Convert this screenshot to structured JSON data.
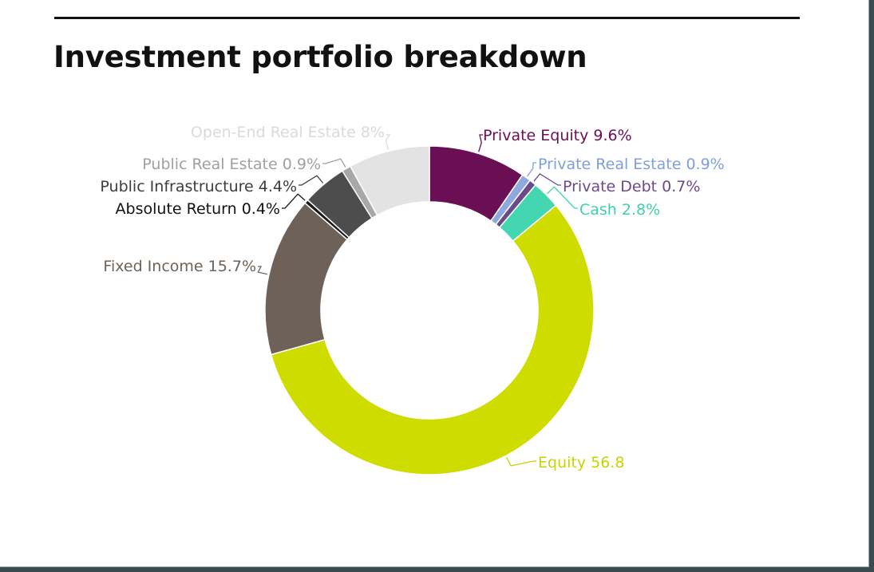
{
  "title": "Investment portfolio breakdown",
  "chart_data": {
    "type": "pie",
    "variant": "donut",
    "title": "Investment portfolio breakdown",
    "start_angle_deg": 0,
    "direction": "clockwise",
    "slices": [
      {
        "name": "Private Equity",
        "value": 9.6,
        "label": "Private Equity 9.6%",
        "color": "#6b0f55",
        "label_color": "#6b0f55"
      },
      {
        "name": "Private Real Estate",
        "value": 0.9,
        "label": "Private Real Estate 0.9%",
        "color": "#8fa9e0",
        "label_color": "#7f9fdc"
      },
      {
        "name": "Private Debt",
        "value": 0.7,
        "label": "Private Debt 0.7%",
        "color": "#6b4a8a",
        "label_color": "#6b4a8a"
      },
      {
        "name": "Cash",
        "value": 2.8,
        "label": "Cash 2.8%",
        "color": "#44d6b0",
        "label_color": "#3fd1a9"
      },
      {
        "name": "Equity",
        "value": 56.8,
        "label": "Equity 56.8",
        "color": "#cfdc00",
        "label_color": "#c7d400"
      },
      {
        "name": "Fixed Income",
        "value": 15.7,
        "label": "Fixed Income 15.7%",
        "color": "#6e6258",
        "label_color": "#6e6258"
      },
      {
        "name": "Absolute Return",
        "value": 0.4,
        "label": "Absolute Return 0.4%",
        "color": "#1a1a1a",
        "label_color": "#111111"
      },
      {
        "name": "Public Infrastructure",
        "value": 4.4,
        "label": "Public Infrastructure 4.4%",
        "color": "#4d4d4d",
        "label_color": "#3d3d3d"
      },
      {
        "name": "Public Real Estate",
        "value": 0.9,
        "label": "Public Real Estate 0.9%",
        "color": "#a8a8a8",
        "label_color": "#a0a0a0"
      },
      {
        "name": "Open-End Real Estate",
        "value": 8.0,
        "label": "Open-End Real Estate 8%",
        "color": "#e3e3e3",
        "label_color": "#dadada"
      }
    ]
  }
}
